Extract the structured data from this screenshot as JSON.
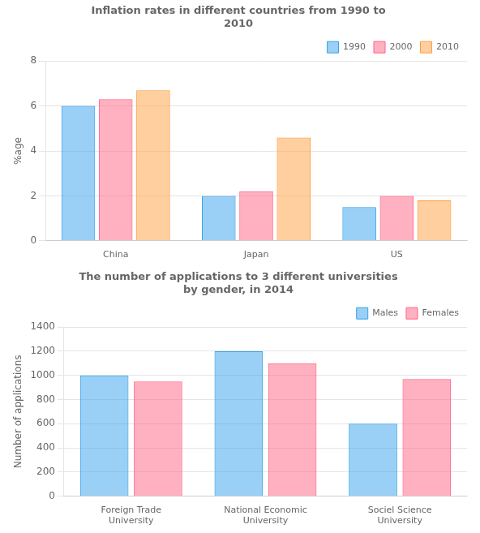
{
  "chart_data": [
    {
      "type": "bar",
      "title": "Inflation rates in different countries from 1990 to\n2010",
      "y_label": "%age",
      "categories": [
        "China",
        "Japan",
        "US"
      ],
      "series": [
        {
          "name": "1990",
          "values": [
            6.0,
            2.0,
            1.5
          ]
        },
        {
          "name": "2000",
          "values": [
            6.3,
            2.2,
            2.0
          ]
        },
        {
          "name": "2010",
          "values": [
            6.7,
            4.6,
            1.8
          ]
        }
      ],
      "ylim": [
        0,
        8
      ],
      "yticks": [
        0,
        2,
        4,
        6,
        8
      ],
      "grid": true,
      "legend": "upper right"
    },
    {
      "type": "bar",
      "title": "The number of applications to 3 different universities\nby gender, in 2014",
      "y_label": "Number of applications",
      "categories": [
        "Foreign Trade\nUniversity",
        "National Economic\nUniversity",
        "Sociel Science\nUniversity"
      ],
      "series": [
        {
          "name": "Males",
          "values": [
            1000,
            1200,
            600
          ]
        },
        {
          "name": "Females",
          "values": [
            950,
            1100,
            970
          ]
        }
      ],
      "ylim": [
        0,
        1400
      ],
      "yticks": [
        0,
        200,
        400,
        600,
        800,
        1000,
        1200,
        1400
      ],
      "grid": true,
      "legend": "upper right"
    }
  ]
}
